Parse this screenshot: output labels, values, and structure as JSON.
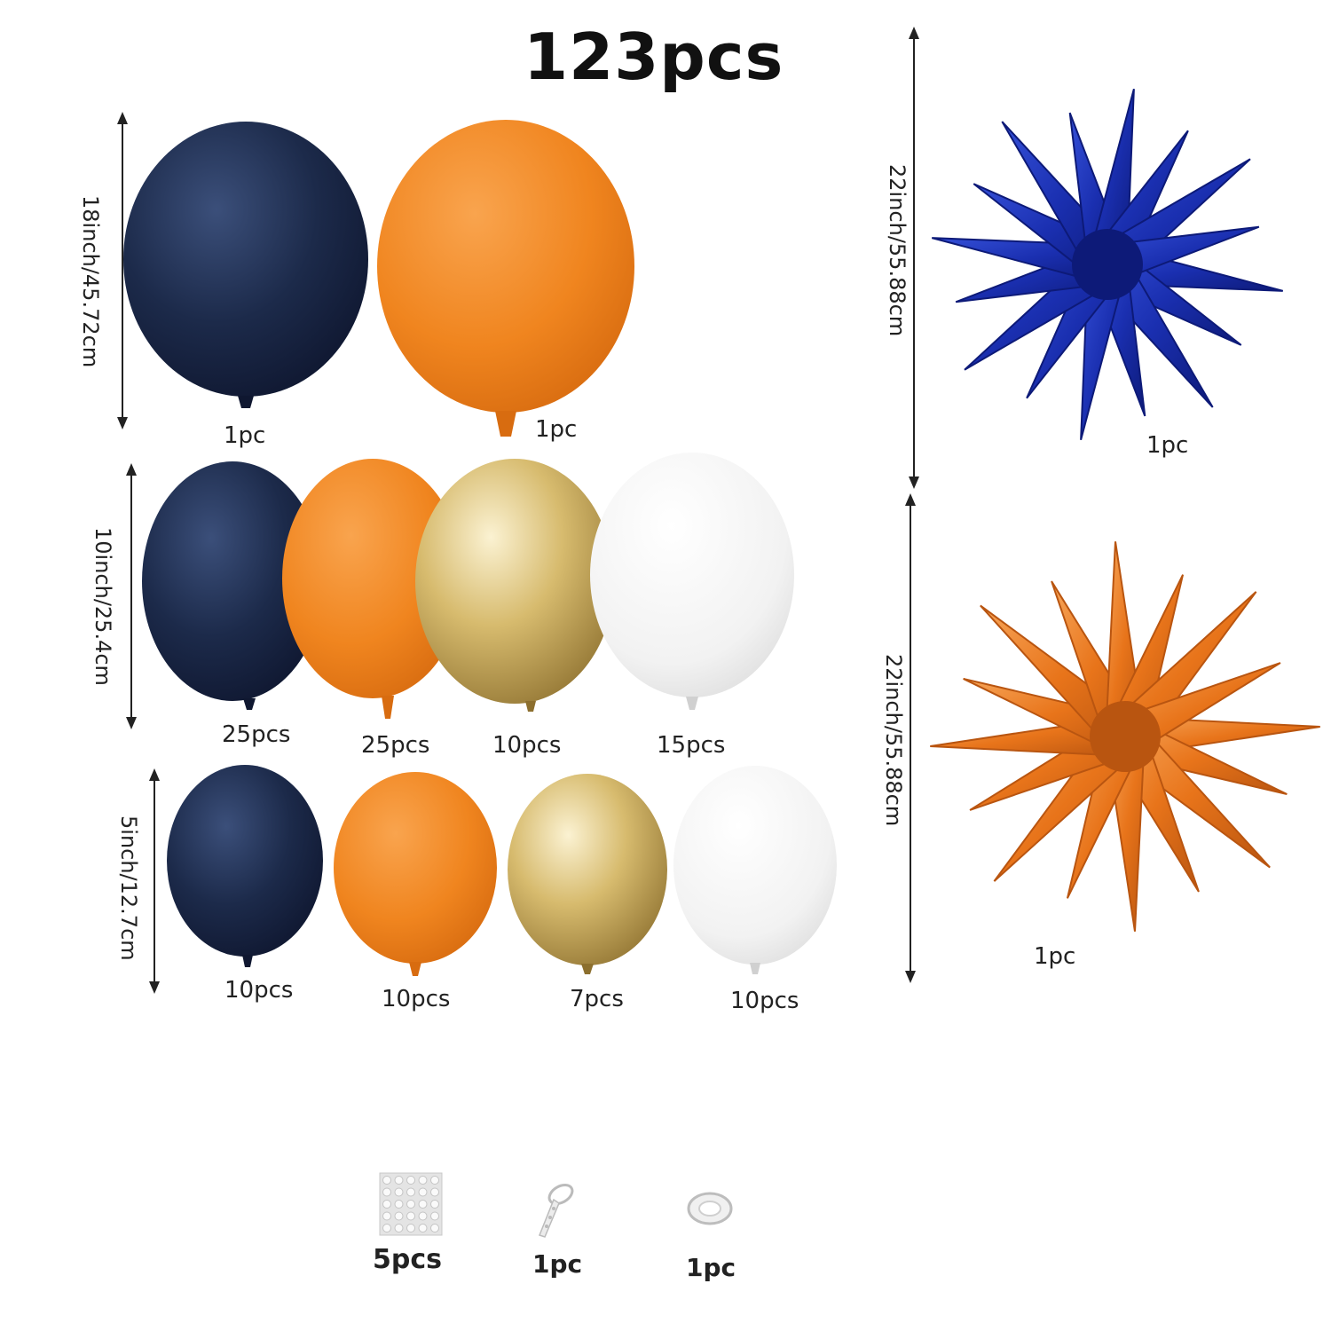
{
  "title": "123pcs",
  "colors": {
    "navy": "#1c2a4a",
    "orange": "#f0851f",
    "gold": "#c9a648",
    "white": "#f2f2f2",
    "royal_blue": "#1a2fb0",
    "star_orange": "#e8741a"
  },
  "rows": [
    {
      "size_label": "18inch/45.72cm",
      "items": [
        {
          "color": "navy",
          "qty": "1pc"
        },
        {
          "color": "orange",
          "qty": "1pc"
        }
      ]
    },
    {
      "size_label": "10inch/25.4cm",
      "items": [
        {
          "color": "navy",
          "qty": "25pcs"
        },
        {
          "color": "orange",
          "qty": "25pcs"
        },
        {
          "color": "gold",
          "qty": "10pcs"
        },
        {
          "color": "white",
          "qty": "15pcs"
        }
      ]
    },
    {
      "size_label": "5inch/12.7cm",
      "items": [
        {
          "color": "navy",
          "qty": "10pcs"
        },
        {
          "color": "orange",
          "qty": "10pcs"
        },
        {
          "color": "gold",
          "qty": "7pcs"
        },
        {
          "color": "white",
          "qty": "10pcs"
        }
      ]
    }
  ],
  "stars": [
    {
      "color": "royal_blue",
      "size_label": "22inch/55.88cm",
      "qty": "1pc"
    },
    {
      "color": "star_orange",
      "size_label": "22inch/55.88cm",
      "qty": "1pc"
    }
  ],
  "accessories": [
    {
      "icon": "glue-dots-sheet-icon",
      "qty": "5pcs"
    },
    {
      "icon": "balloon-strip-tape-icon",
      "qty": "1pc"
    },
    {
      "icon": "ribbon-roll-icon",
      "qty": "1pc"
    }
  ]
}
